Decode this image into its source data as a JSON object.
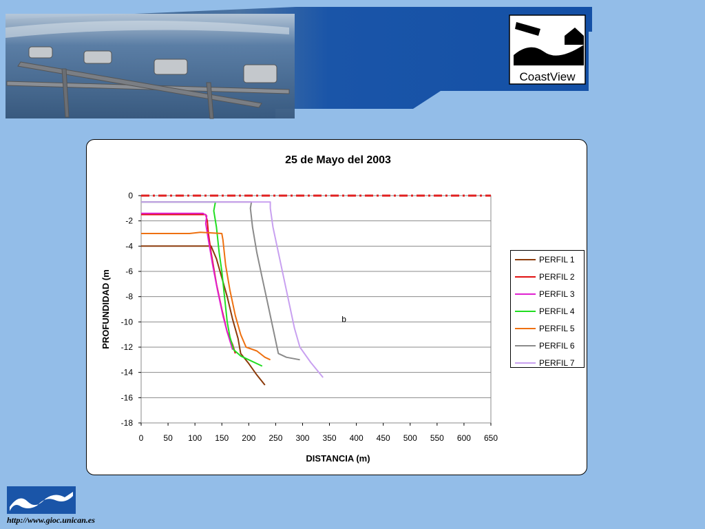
{
  "footer": {
    "url": "http://www.gioc.unican.es"
  },
  "logo": {
    "brand": "CoastView"
  },
  "chart_data": {
    "type": "line",
    "title": "25 de Mayo del 2003",
    "xlabel": "DISTANCIA (m)",
    "ylabel": "PROFUNDIDAD (m",
    "xlim": [
      0,
      650
    ],
    "ylim": [
      -18,
      0
    ],
    "xticks": [
      0,
      50,
      100,
      150,
      200,
      250,
      300,
      350,
      400,
      450,
      500,
      550,
      600,
      650
    ],
    "yticks": [
      0,
      -2,
      -4,
      -6,
      -8,
      -10,
      -12,
      -14,
      -16,
      -18
    ],
    "grid": "horizontal",
    "legend_position": "right",
    "annotation": {
      "text": "b",
      "x": 377,
      "y": -10
    },
    "reference_line": {
      "y": 0,
      "color": "#e02020",
      "style": "dash-dot"
    },
    "series": [
      {
        "name": "PERFIL 1",
        "color": "#8b3a0a",
        "points": [
          [
            0,
            -4
          ],
          [
            130,
            -4
          ],
          [
            140,
            -5
          ],
          [
            150,
            -6.5
          ],
          [
            160,
            -8
          ],
          [
            170,
            -9.8
          ],
          [
            180,
            -11.3
          ],
          [
            185,
            -12.5
          ],
          [
            200,
            -13.3
          ],
          [
            215,
            -14.2
          ],
          [
            230,
            -15
          ]
        ]
      },
      {
        "name": "PERFIL 2",
        "color": "#e01010",
        "points": [
          [
            0,
            -1.5
          ],
          [
            120,
            -1.5
          ],
          [
            123,
            -2
          ],
          [
            125,
            -3
          ],
          [
            130,
            -4.5
          ],
          [
            140,
            -7
          ],
          [
            150,
            -9
          ],
          [
            160,
            -10.8
          ],
          [
            170,
            -11.8
          ],
          [
            175,
            -12.5
          ]
        ]
      },
      {
        "name": "PERFIL 3",
        "color": "#e020d0",
        "points": [
          [
            0,
            -1.4
          ],
          [
            115,
            -1.4
          ],
          [
            122,
            -1.6
          ],
          [
            120,
            -2.2
          ],
          [
            125,
            -3.5
          ],
          [
            133,
            -5.5
          ],
          [
            142,
            -7.5
          ],
          [
            152,
            -9.5
          ],
          [
            160,
            -10.8
          ],
          [
            170,
            -12.2
          ]
        ]
      },
      {
        "name": "PERFIL 4",
        "color": "#20dd20",
        "points": [
          [
            0,
            -0.5
          ],
          [
            138,
            -0.5
          ],
          [
            135,
            -1.2
          ],
          [
            140,
            -2.5
          ],
          [
            145,
            -4.5
          ],
          [
            150,
            -6
          ],
          [
            155,
            -8
          ],
          [
            160,
            -10
          ],
          [
            165,
            -11.2
          ],
          [
            172,
            -12.2
          ],
          [
            185,
            -12.7
          ],
          [
            225,
            -13.5
          ]
        ]
      },
      {
        "name": "PERFIL 5",
        "color": "#ee7010",
        "points": [
          [
            0,
            -3
          ],
          [
            90,
            -3
          ],
          [
            110,
            -2.9
          ],
          [
            150,
            -3
          ],
          [
            152,
            -3.5
          ],
          [
            157,
            -5.5
          ],
          [
            165,
            -7.5
          ],
          [
            175,
            -9.5
          ],
          [
            185,
            -11
          ],
          [
            195,
            -12
          ],
          [
            215,
            -12.3
          ],
          [
            230,
            -12.8
          ],
          [
            240,
            -13
          ]
        ]
      },
      {
        "name": "PERFIL 6",
        "color": "#8a8a8a",
        "points": [
          [
            0,
            -0.5
          ],
          [
            205,
            -0.5
          ],
          [
            203,
            -1
          ],
          [
            207,
            -2.5
          ],
          [
            215,
            -4.5
          ],
          [
            225,
            -6.5
          ],
          [
            235,
            -8.5
          ],
          [
            245,
            -10.5
          ],
          [
            250,
            -11.5
          ],
          [
            255,
            -12.5
          ],
          [
            270,
            -12.8
          ],
          [
            295,
            -13
          ]
        ]
      },
      {
        "name": "PERFIL 7",
        "color": "#c8a0f0",
        "points": [
          [
            0,
            -0.5
          ],
          [
            240,
            -0.5
          ],
          [
            240,
            -1
          ],
          [
            245,
            -2.5
          ],
          [
            255,
            -4.5
          ],
          [
            265,
            -6.5
          ],
          [
            275,
            -8.5
          ],
          [
            285,
            -10.5
          ],
          [
            295,
            -12
          ],
          [
            315,
            -13.2
          ],
          [
            338,
            -14.4
          ]
        ]
      }
    ]
  }
}
